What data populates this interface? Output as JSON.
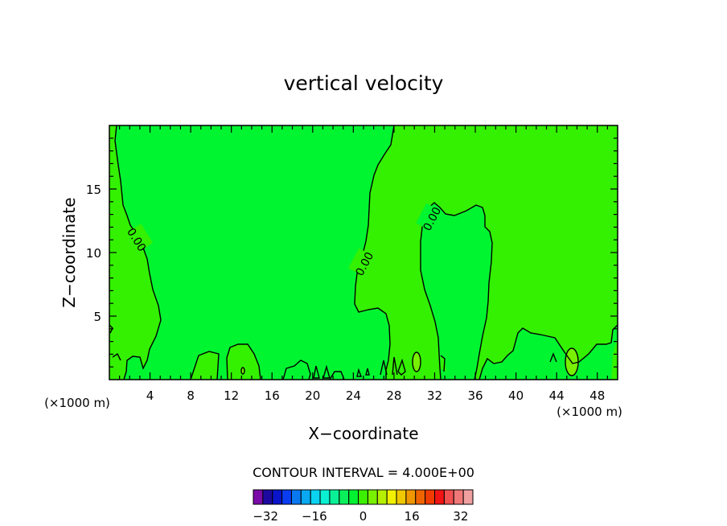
{
  "chart_data": {
    "type": "contour",
    "title": "vertical velocity",
    "xlabel": "X−coordinate",
    "ylabel": "Z−coordinate",
    "x_unit_left": "(×1000 m)",
    "x_unit_right": "(×1000 m)",
    "xlim": [
      0,
      50
    ],
    "ylim": [
      0,
      20
    ],
    "x_ticks": [
      4,
      8,
      12,
      16,
      20,
      24,
      28,
      32,
      36,
      40,
      44,
      48
    ],
    "y_ticks": [
      5,
      10,
      15
    ],
    "contour_label": "0.00",
    "contour_interval_text": "CONTOUR INTERVAL = 4.000E+00",
    "colorbar": {
      "tick_labels": [
        "−32",
        "−16",
        "0",
        "16",
        "32"
      ],
      "tick_values": [
        -32,
        -16,
        0,
        16,
        32
      ],
      "colors": [
        "#7a0aa8",
        "#1c0aa0",
        "#0a14c8",
        "#0a3cf0",
        "#0a78f0",
        "#0aa8f0",
        "#0ad2f0",
        "#0af0d2",
        "#0af096",
        "#0af05a",
        "#00f032",
        "#3cf000",
        "#78f000",
        "#b4f000",
        "#f0f000",
        "#f0c800",
        "#f09600",
        "#f06400",
        "#f03c00",
        "#f01414",
        "#f05050",
        "#f07878",
        "#f0a0a0"
      ]
    },
    "fill_colors": {
      "neutral": "#00f531",
      "positive": "#33f100",
      "high": "#78f000"
    }
  }
}
